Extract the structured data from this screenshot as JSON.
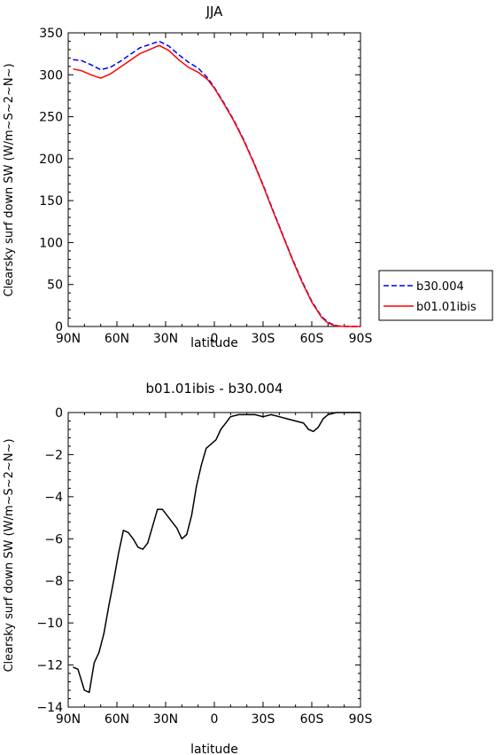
{
  "chart_data": [
    {
      "type": "line",
      "title": "JJA",
      "xlabel": "latitude",
      "ylabel": "Clearsky surf down SW (W/m~S~2~N~)",
      "xlim": [
        90,
        -90
      ],
      "ylim": [
        0,
        350
      ],
      "x_ticks": [
        90,
        60,
        30,
        0,
        -30,
        -60,
        -90
      ],
      "x_tick_labels": [
        "90N",
        "60N",
        "30N",
        "0",
        "30S",
        "60S",
        "90S"
      ],
      "y_ticks": [
        0,
        50,
        100,
        150,
        200,
        250,
        300,
        350
      ],
      "y_tick_labels": [
        "0",
        "50",
        "100",
        "150",
        "200",
        "250",
        "300",
        "350"
      ],
      "legend_position": "right",
      "series": [
        {
          "name": "b30.004",
          "color": "#0000ff",
          "dash": "dashed",
          "x": [
            87,
            82,
            76,
            70,
            64,
            58,
            52,
            46,
            40,
            34,
            28,
            22,
            16,
            10,
            4,
            0,
            -6,
            -12,
            -18,
            -24,
            -30,
            -36,
            -42,
            -48,
            -54,
            -60,
            -66,
            -70,
            -74,
            -78,
            -82,
            -86,
            -90
          ],
          "y": [
            318,
            317,
            312,
            306,
            309,
            316,
            324,
            332,
            336,
            340,
            334,
            324,
            315,
            308,
            296,
            285,
            266,
            246,
            223,
            197,
            169,
            139,
            110,
            81,
            54,
            30,
            12,
            5,
            1.5,
            0.3,
            0,
            0,
            0
          ]
        },
        {
          "name": "b01.01ibis",
          "color": "#ff0000",
          "dash": "solid",
          "x": [
            87,
            82,
            76,
            70,
            64,
            58,
            52,
            46,
            40,
            34,
            28,
            22,
            16,
            10,
            4,
            0,
            -6,
            -12,
            -18,
            -24,
            -30,
            -36,
            -42,
            -48,
            -54,
            -60,
            -66,
            -70,
            -74,
            -78,
            -82,
            -86,
            -90
          ],
          "y": [
            307,
            305,
            300,
            296,
            301,
            309,
            317,
            325,
            330,
            335,
            329,
            318,
            309,
            303,
            294,
            284,
            265,
            245,
            222,
            196,
            168,
            138,
            109,
            80,
            53,
            29,
            11,
            4,
            1.2,
            0.2,
            0,
            0,
            0
          ]
        }
      ]
    },
    {
      "type": "line",
      "title": "b01.01ibis - b30.004",
      "xlabel": "latitude",
      "ylabel": "Clearsky surf down SW (W/m~S~2~N~)",
      "xlim": [
        90,
        -90
      ],
      "ylim": [
        -14,
        0
      ],
      "x_ticks": [
        90,
        60,
        30,
        0,
        -30,
        -60,
        -90
      ],
      "x_tick_labels": [
        "90N",
        "60N",
        "30N",
        "0",
        "30S",
        "60S",
        "90S"
      ],
      "y_ticks": [
        0,
        -2,
        -4,
        -6,
        -8,
        -10,
        -12,
        -14
      ],
      "y_tick_labels": [
        "0",
        "−2",
        "−4",
        "−6",
        "−8",
        "−10",
        "−12",
        "−14"
      ],
      "series": [
        {
          "color": "#000000",
          "dash": "solid",
          "x": [
            87,
            84,
            80,
            77,
            74,
            71,
            68,
            65,
            62,
            59,
            56,
            53,
            50,
            47,
            44,
            41,
            38,
            35,
            32,
            29,
            26,
            23,
            20,
            17,
            14,
            11,
            8,
            5,
            2,
            -1,
            -4,
            -7,
            -10,
            -15,
            -20,
            -25,
            -30,
            -35,
            -40,
            -45,
            -50,
            -55,
            -58,
            -61,
            -64,
            -67,
            -70,
            -75,
            -80,
            -85,
            -90
          ],
          "y": [
            -12.1,
            -12.2,
            -13.2,
            -13.3,
            -11.9,
            -11.4,
            -10.5,
            -9.2,
            -8.0,
            -6.7,
            -5.6,
            -5.7,
            -6.0,
            -6.4,
            -6.5,
            -6.2,
            -5.4,
            -4.6,
            -4.6,
            -4.9,
            -5.2,
            -5.5,
            -6.0,
            -5.8,
            -4.9,
            -3.5,
            -2.5,
            -1.7,
            -1.5,
            -1.3,
            -0.8,
            -0.5,
            -0.2,
            -0.1,
            -0.1,
            -0.1,
            -0.2,
            -0.1,
            -0.2,
            -0.3,
            -0.4,
            -0.5,
            -0.8,
            -0.9,
            -0.7,
            -0.3,
            -0.1,
            0,
            0,
            0,
            0
          ]
        }
      ]
    }
  ]
}
